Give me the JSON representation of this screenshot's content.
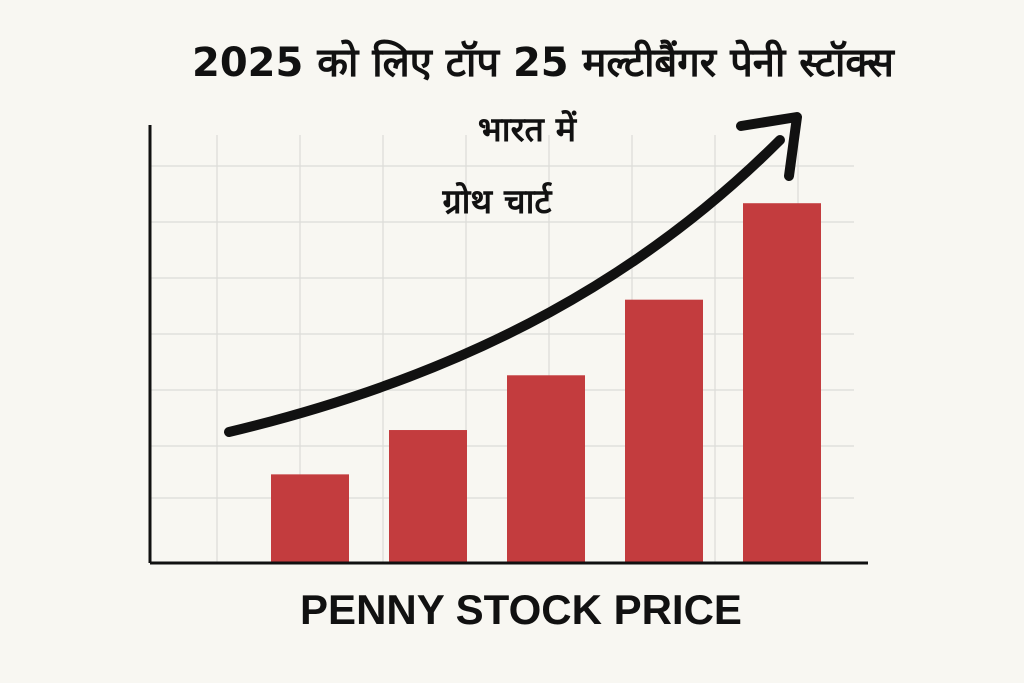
{
  "chart_data": {
    "type": "bar",
    "title": "2025 को लिए टॉप 25 मल्टीबैंगर पेनी स्टॉक्स",
    "subtitle_lines": [
      "भारत में",
      "ग्रोथ चार्ट"
    ],
    "xlabel": "PENNY STOCK PRICE",
    "ylabel": "",
    "categories": [
      "",
      "",
      "",
      "",
      ""
    ],
    "values": [
      1.7,
      2.55,
      3.6,
      5.05,
      6.9
    ],
    "ylim": [
      0,
      8.4
    ],
    "grid": true,
    "legend": "none",
    "annotation": "upward trend arrow",
    "colors": {
      "bar": "#c33c3e",
      "axis": "#111111",
      "grid": "#dcdcd8",
      "background": "#f8f7f2",
      "text": "#111111"
    }
  }
}
